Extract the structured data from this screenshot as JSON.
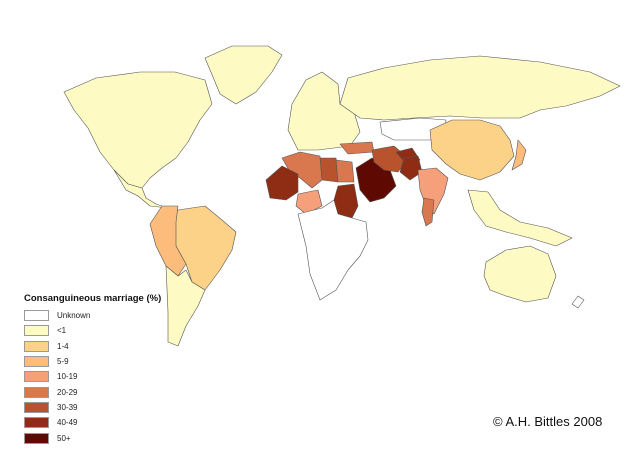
{
  "legend": {
    "title": "Consanguineous marriage (%)",
    "categories": [
      {
        "label": "Unknown",
        "color": "#ffffff"
      },
      {
        "label": "<1",
        "color": "#fdfac3"
      },
      {
        "label": "1-4",
        "color": "#fcd188"
      },
      {
        "label": "5-9",
        "color": "#fbbc7c"
      },
      {
        "label": "10-19",
        "color": "#f5a07a"
      },
      {
        "label": "20-29",
        "color": "#d9774e"
      },
      {
        "label": "30-39",
        "color": "#b9532d"
      },
      {
        "label": "40-49",
        "color": "#8e2d13"
      },
      {
        "label": "50+",
        "color": "#5e0a02"
      }
    ]
  },
  "credit": "© A.H. Bittles 2008",
  "regions": [
    {
      "name": "North America",
      "category": "<1"
    },
    {
      "name": "Greenland",
      "category": "<1"
    },
    {
      "name": "Europe",
      "category": "<1"
    },
    {
      "name": "Russia",
      "category": "<1"
    },
    {
      "name": "Australia",
      "category": "<1"
    },
    {
      "name": "Central America",
      "category": "<1"
    },
    {
      "name": "Brazil",
      "category": "1-4"
    },
    {
      "name": "Andean South America",
      "category": "5-9"
    },
    {
      "name": "Southern Cone",
      "category": "<1"
    },
    {
      "name": "China",
      "category": "1-4"
    },
    {
      "name": "Japan",
      "category": "5-9"
    },
    {
      "name": "Northwest Africa",
      "category": "20-29"
    },
    {
      "name": "Libya",
      "category": "30-39"
    },
    {
      "name": "Egypt",
      "category": "20-29"
    },
    {
      "name": "Sudan",
      "category": "40-49"
    },
    {
      "name": "West Sahel",
      "category": "40-49"
    },
    {
      "name": "Nigeria",
      "category": "10-19"
    },
    {
      "name": "Sub-Saharan Africa",
      "category": "Unknown"
    },
    {
      "name": "Arabian Peninsula",
      "category": "50+"
    },
    {
      "name": "Iran",
      "category": "30-39"
    },
    {
      "name": "Pakistan",
      "category": "40-49"
    },
    {
      "name": "Afghanistan",
      "category": "40-49"
    },
    {
      "name": "Turkey",
      "category": "20-29"
    },
    {
      "name": "India",
      "category": "10-19"
    },
    {
      "name": "South India",
      "category": "20-29"
    },
    {
      "name": "Southeast Asia",
      "category": "<1"
    },
    {
      "name": "Central Asia",
      "category": "Unknown"
    }
  ]
}
